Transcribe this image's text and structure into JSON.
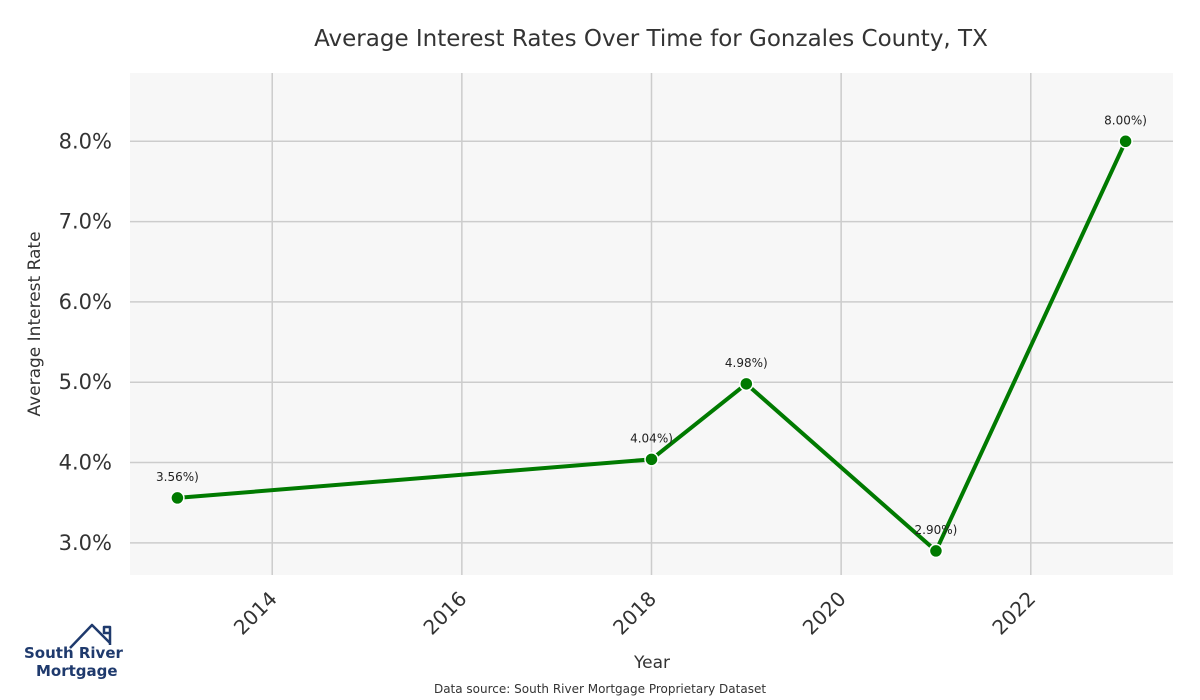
{
  "chart_data": {
    "type": "line",
    "title": "Average Interest Rates Over Time for Gonzales County, TX",
    "xlabel": "Year",
    "ylabel": "Average Interest Rate",
    "xlim": [
      2012.5,
      2023.5
    ],
    "ylim": [
      2.6,
      8.85
    ],
    "xticks": [
      "2014",
      "2016",
      "2018",
      "2020",
      "2022"
    ],
    "yticks": [
      "3.0%",
      "4.0%",
      "5.0%",
      "6.0%",
      "7.0%",
      "8.0%"
    ],
    "grid": true,
    "series": [
      {
        "x": [
          2013,
          2018,
          2019,
          2021,
          2023
        ],
        "y": [
          3.56,
          4.04,
          4.98,
          2.9,
          8.0
        ],
        "labels": [
          "3.56%)",
          "4.04%)",
          "4.98%)",
          "2.90%)",
          "8.00%)"
        ]
      }
    ],
    "source": "Data source: South River Mortgage Proprietary Dataset"
  },
  "colors": {
    "line": "#007a00",
    "plot_bg": "#f7f7f7",
    "grid": "#cccccc",
    "logo": "#1f3a6d"
  },
  "logo": {
    "line1": "South River",
    "line2": "Mortgage",
    "icon": "house-roof-icon"
  }
}
